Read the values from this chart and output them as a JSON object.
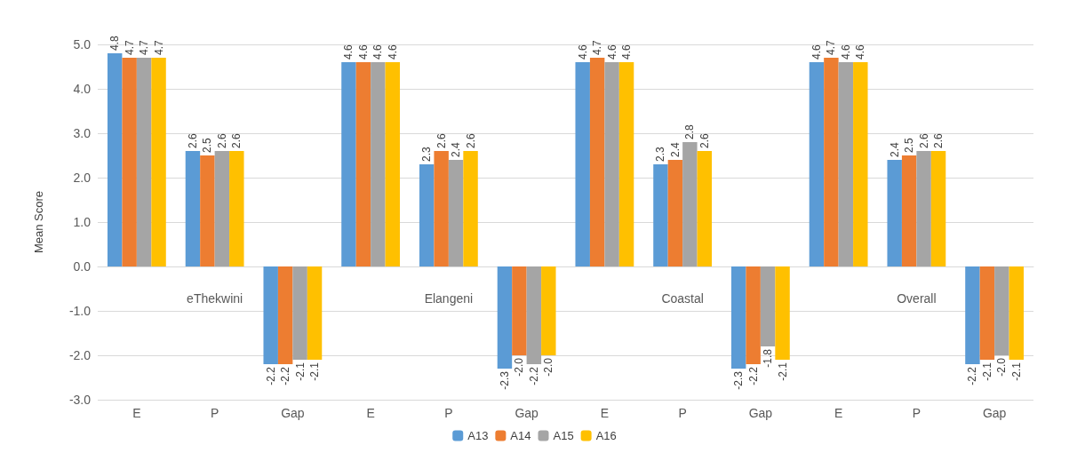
{
  "chart_data": {
    "type": "bar",
    "ylabel": "Mean Score",
    "categories": [
      "E",
      "P",
      "Gap",
      "E",
      "P",
      "Gap",
      "E",
      "P",
      "Gap",
      "E",
      "P",
      "Gap"
    ],
    "annotations": [
      "eThekwini",
      "Elangeni",
      "Coastal",
      "Overall"
    ],
    "series": [
      {
        "name": "A13",
        "color": "#5b9bd5",
        "values": [
          4.8,
          2.6,
          -2.2,
          4.6,
          2.3,
          -2.3,
          4.6,
          2.3,
          -2.3,
          4.6,
          2.4,
          -2.2
        ],
        "value_labels": [
          "4.8",
          "2.6",
          "-2.2",
          "4.6",
          "2.3",
          "-2.3",
          "4.6",
          "2.3",
          "-2.3",
          "4.6",
          "2.4",
          "-2.2"
        ]
      },
      {
        "name": "A14",
        "color": "#ed7d31",
        "values": [
          4.7,
          2.5,
          -2.2,
          4.6,
          2.6,
          -2.0,
          4.7,
          2.4,
          -2.2,
          4.7,
          2.5,
          -2.1
        ],
        "value_labels": [
          "4.7",
          "2.5",
          "-2.2",
          "4.6",
          "2.6",
          "-2.0",
          "4.7",
          "2.4",
          "-2.2",
          "4.7",
          "2.5",
          "-2.1"
        ]
      },
      {
        "name": "A15",
        "color": "#a5a5a5",
        "values": [
          4.7,
          2.6,
          -2.1,
          4.6,
          2.4,
          -2.2,
          4.6,
          2.8,
          -1.8,
          4.6,
          2.6,
          -2.0
        ],
        "value_labels": [
          "4.7",
          "2.6",
          "-2.1",
          "4.6",
          "2.4",
          "-2.2",
          "4.6",
          "2.8",
          "-1.8",
          "4.6",
          "2.6",
          "-2.0"
        ]
      },
      {
        "name": "A16",
        "color": "#ffc000",
        "values": [
          4.7,
          2.6,
          -2.1,
          4.6,
          2.6,
          -2.0,
          4.6,
          2.6,
          -2.1,
          4.6,
          2.6,
          -2.1
        ],
        "value_labels": [
          "4.7",
          "2.6",
          "-2.1",
          "4.6",
          "2.6",
          "-2.0",
          "4.6",
          "2.6",
          "-2.1",
          "4.6",
          "2.6",
          "-2.1"
        ]
      }
    ],
    "ylim": [
      -3,
      5
    ],
    "yticks": [
      {
        "value": -3,
        "label": "-3.0"
      },
      {
        "value": -2,
        "label": "-2.0"
      },
      {
        "value": -1,
        "label": "-1.0"
      },
      {
        "value": 0,
        "label": "0.0"
      },
      {
        "value": 1,
        "label": "1.0"
      },
      {
        "value": 2,
        "label": "2.0"
      },
      {
        "value": 3,
        "label": "3.0"
      },
      {
        "value": 4,
        "label": "4.0"
      },
      {
        "value": 5,
        "label": "5.0"
      }
    ],
    "grid": "y",
    "legend": "bottom"
  }
}
